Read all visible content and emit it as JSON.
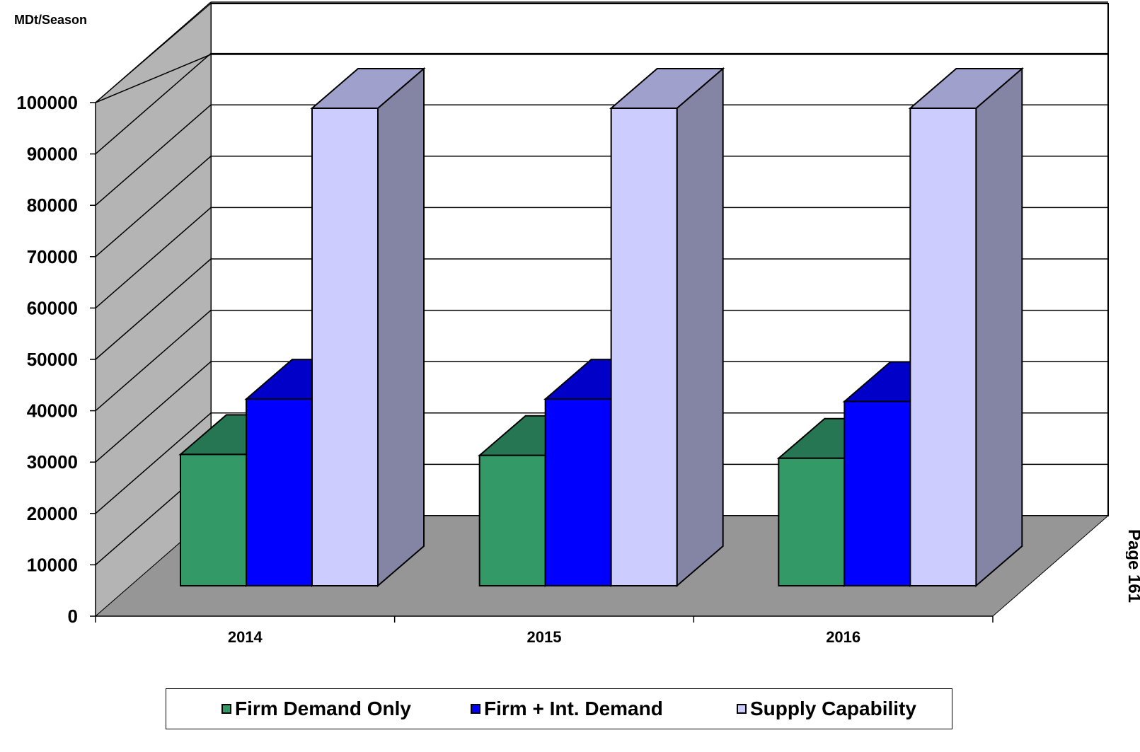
{
  "chart_data": {
    "type": "bar",
    "style": "3d-clustered-column",
    "ylabel": "MDt/Season",
    "xlabel": "",
    "categories": [
      "2014",
      "2015",
      "2016"
    ],
    "ylim": [
      0,
      100000
    ],
    "yticks": [
      "0",
      "10000",
      "20000",
      "30000",
      "40000",
      "50000",
      "60000",
      "70000",
      "80000",
      "90000",
      "100000"
    ],
    "grid": true,
    "legend_position": "bottom",
    "series": [
      {
        "name": "Firm Demand Only",
        "values": [
          27500,
          27300,
          26700
        ],
        "color": "#339966",
        "top_color": "#267553",
        "side_color": "#1f6244"
      },
      {
        "name": "Firm + Int. Demand",
        "values": [
          39100,
          39100,
          38600
        ],
        "color": "#0000FF",
        "top_color": "#0000C8",
        "side_color": "#0000A0"
      },
      {
        "name": "Supply Capability",
        "values": [
          100000,
          100000,
          100000
        ],
        "color": "#CCCCFF",
        "top_color": "#A0A0CC",
        "side_color": "#8484A4"
      }
    ]
  },
  "side_label": "Page 161"
}
